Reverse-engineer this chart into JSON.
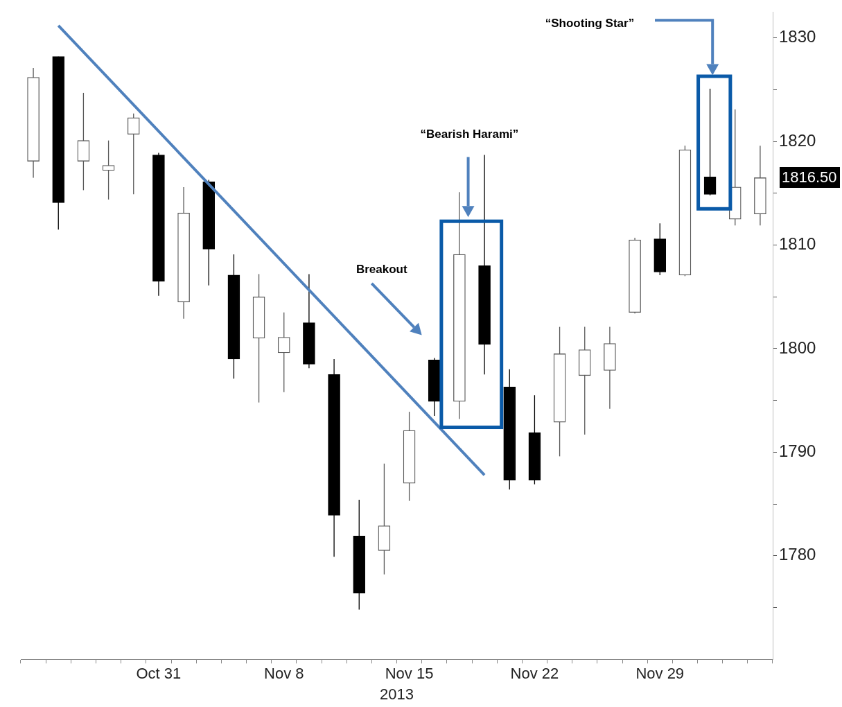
{
  "chart_data": {
    "type": "candlestick",
    "xlabel": "2013",
    "categories": [
      null,
      null,
      null,
      null,
      null,
      "Oct 31",
      null,
      null,
      null,
      null,
      "Nov 8",
      null,
      null,
      null,
      null,
      "Nov 15",
      null,
      null,
      null,
      null,
      "Nov 22",
      null,
      null,
      null,
      null,
      "Nov 29",
      null,
      null,
      null,
      null
    ],
    "ohlc": [
      [
        1818.1,
        1827.1,
        1816.5,
        1826.2
      ],
      [
        1828.2,
        1828.2,
        1811.5,
        1814.1
      ],
      [
        1818.1,
        1824.7,
        1815.3,
        1820.1
      ],
      [
        1817.2,
        1820.1,
        1814.4,
        1817.7
      ],
      [
        1820.7,
        1822.7,
        1814.9,
        1822.3
      ],
      [
        1818.7,
        1818.9,
        1805.1,
        1806.5
      ],
      [
        1804.5,
        1815.6,
        1802.9,
        1813.1
      ],
      [
        1816.1,
        1816.3,
        1806.1,
        1809.6
      ],
      [
        1807.1,
        1809.1,
        1797.1,
        1799.0
      ],
      [
        1801.0,
        1807.2,
        1794.8,
        1805.0
      ],
      [
        1799.6,
        1803.5,
        1795.8,
        1801.1
      ],
      [
        1802.5,
        1807.2,
        1798.1,
        1798.5
      ],
      [
        1797.5,
        1799.0,
        1779.9,
        1783.9
      ],
      [
        1781.9,
        1785.4,
        1774.8,
        1776.4
      ],
      [
        1780.5,
        1788.9,
        1778.2,
        1782.9
      ],
      [
        1787.0,
        1793.9,
        1785.3,
        1792.1
      ],
      [
        1798.9,
        1799.1,
        1793.5,
        1794.9
      ],
      [
        1794.9,
        1815.1,
        1793.2,
        1809.1
      ],
      [
        1808.0,
        1818.7,
        1797.5,
        1800.4
      ],
      [
        1796.3,
        1798.0,
        1786.4,
        1787.3
      ],
      [
        1791.9,
        1795.5,
        1786.9,
        1787.3
      ],
      [
        1792.9,
        1802.1,
        1789.6,
        1799.5
      ],
      [
        1797.4,
        1802.1,
        1791.7,
        1799.9
      ],
      [
        1797.9,
        1802.1,
        1794.2,
        1800.5
      ],
      [
        1803.5,
        1810.7,
        1803.4,
        1810.5
      ],
      [
        1810.6,
        1812.1,
        1807.1,
        1807.4
      ],
      [
        1807.1,
        1819.6,
        1807.0,
        1819.2
      ],
      [
        1816.6,
        1825.1,
        1814.8,
        1814.9
      ],
      [
        1812.5,
        1823.1,
        1811.9,
        1815.6
      ],
      [
        1813.0,
        1819.6,
        1811.9,
        1816.5
      ]
    ],
    "colors": [
      "#595959",
      "#000000",
      "#595959",
      "#595959",
      "#595959",
      "#000000",
      "#595959",
      "#000000",
      "#000000",
      "#595959",
      "#595959",
      "#000000",
      "#000000",
      "#000000",
      "#595959",
      "#595959",
      "#000000",
      "#595959",
      "#000000",
      "#000000",
      "#000000",
      "#595959",
      "#595959",
      "#595959",
      "#595959",
      "#000000",
      "#595959",
      "#000000",
      "#595959",
      "#595959"
    ],
    "series": [
      {
        "type": "line",
        "values": [
          null,
          1831.2,
          null,
          null,
          null,
          null,
          null,
          null,
          null,
          null,
          null,
          null,
          null,
          null,
          null,
          null,
          null,
          null,
          1787.8,
          null,
          null,
          null,
          null,
          null,
          null,
          null,
          null,
          null,
          null,
          null
        ],
        "color": "#4f81bd"
      }
    ],
    "ylim": [
      1770,
      1832.5
    ],
    "yticks": [
      {
        "value": 1775,
        "label": null
      },
      1780,
      {
        "value": 1785,
        "label": null
      },
      1790,
      {
        "value": 1795,
        "label": null
      },
      1800,
      {
        "value": 1805,
        "label": null
      },
      1810,
      {
        "value": 1815,
        "label": null
      },
      1820,
      {
        "value": 1825,
        "label": null
      },
      1830
    ],
    "annotations": [
      "“Bearish Harami”",
      "Breakout",
      "“Shooting Star”",
      "1816.50"
    ]
  }
}
